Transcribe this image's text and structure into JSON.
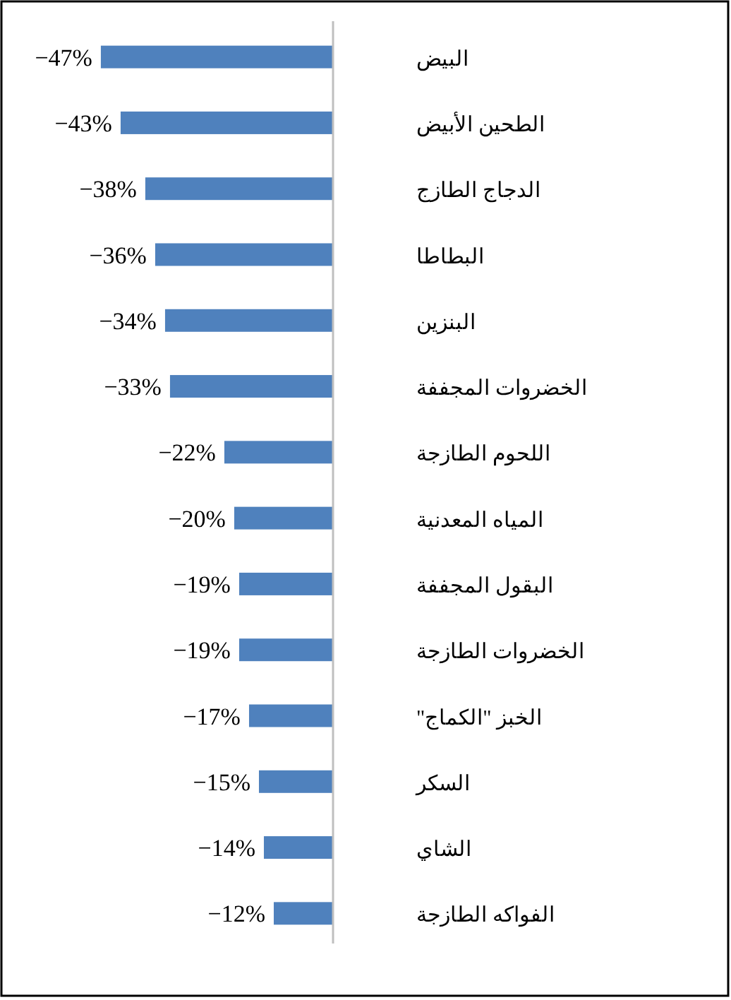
{
  "chart_data": {
    "type": "bar",
    "orientation": "horizontal",
    "categories": [
      "البيض",
      "الطحين الأبيض",
      "الدجاج الطازج",
      "البطاطا",
      "البنزين",
      "الخضروات المجففة",
      "اللحوم الطازجة",
      "المياه المعدنية",
      "البقول المجففة",
      "الخضروات الطازجة",
      "الخبز \"الكماج\"",
      "السكر",
      "الشاي",
      "الفواكه الطازجة"
    ],
    "values": [
      -47,
      -43,
      -38,
      -36,
      -34,
      -33,
      -22,
      -20,
      -19,
      -19,
      -17,
      -15,
      -14,
      -12
    ],
    "value_labels": [
      "−47%",
      "−43%",
      "−38%",
      "−36%",
      "−34%",
      "−33%",
      "−22%",
      "−20%",
      "−19%",
      "−19%",
      "−17%",
      "−15%",
      "−14%",
      "−12%"
    ],
    "color": "#4f81bd"
  }
}
